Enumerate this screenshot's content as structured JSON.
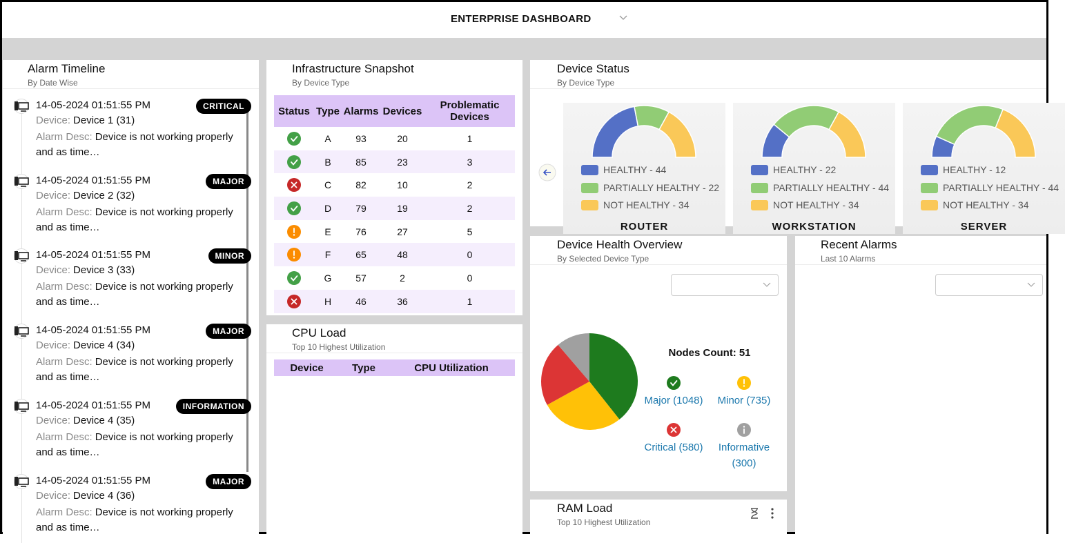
{
  "header": {
    "title": "ENTERPRISE DASHBOARD"
  },
  "alarm_timeline": {
    "title": "Alarm Timeline",
    "subtitle": "By Date Wise",
    "device_label": "Device:",
    "desc_label": "Alarm Desc:",
    "items": [
      {
        "datetime": "14-05-2024 01:51:55 PM",
        "severity": "CRITICAL",
        "device": "Device 1 (31)",
        "desc": "Device is not working properly and as time…"
      },
      {
        "datetime": "14-05-2024 01:51:55 PM",
        "severity": "MAJOR",
        "device": "Device 2 (32)",
        "desc": "Device is not working properly and as time…"
      },
      {
        "datetime": "14-05-2024 01:51:55 PM",
        "severity": "MINOR",
        "device": "Device 3 (33)",
        "desc": "Device is not working properly and as time…"
      },
      {
        "datetime": "14-05-2024 01:51:55 PM",
        "severity": "MAJOR",
        "device": "Device 4 (34)",
        "desc": "Device is not working properly and as time…"
      },
      {
        "datetime": "14-05-2024 01:51:55 PM",
        "severity": "INFORMATION",
        "device": "Device 4 (35)",
        "desc": "Device is not working properly and as time…"
      },
      {
        "datetime": "14-05-2024 01:51:55 PM",
        "severity": "MAJOR",
        "device": "Device 4 (36)",
        "desc": "Device is not working properly and as time…"
      }
    ]
  },
  "infrastructure_snapshot": {
    "title": "Infrastructure Snapshot",
    "subtitle": "By Device Type",
    "columns": [
      "Status",
      "Type",
      "Alarms",
      "Devices",
      "Problematic Devices"
    ],
    "status_colors": {
      "ok": "#43a047",
      "error": "#c62828",
      "warning": "#fb8c00"
    },
    "rows": [
      {
        "status": "ok",
        "type": "A",
        "alarms": 93,
        "devices": 20,
        "problematic_devices": 1
      },
      {
        "status": "ok",
        "type": "B",
        "alarms": 85,
        "devices": 23,
        "problematic_devices": 3
      },
      {
        "status": "error",
        "type": "C",
        "alarms": 82,
        "devices": 10,
        "problematic_devices": 2
      },
      {
        "status": "ok",
        "type": "D",
        "alarms": 79,
        "devices": 19,
        "problematic_devices": 2
      },
      {
        "status": "warning",
        "type": "E",
        "alarms": 76,
        "devices": 27,
        "problematic_devices": 5
      },
      {
        "status": "warning",
        "type": "F",
        "alarms": 65,
        "devices": 48,
        "problematic_devices": 0
      },
      {
        "status": "ok",
        "type": "G",
        "alarms": 57,
        "devices": 2,
        "problematic_devices": 0
      },
      {
        "status": "error",
        "type": "H",
        "alarms": 46,
        "devices": 36,
        "problematic_devices": 1
      }
    ]
  },
  "cpu_load": {
    "title": "CPU Load",
    "subtitle": "Top 10 Highest Utilization",
    "columns": [
      "Device",
      "Type",
      "CPU Utilization"
    ]
  },
  "device_status": {
    "title": "Device Status",
    "subtitle": "By Device Type",
    "cards": [
      {
        "name": "ROUTER",
        "segments": [
          {
            "label": "HEALTHY - 44",
            "value": 44,
            "color": "#5470c6"
          },
          {
            "label": "PARTIALLY HEALTHY - 22",
            "value": 22,
            "color": "#91cc75"
          },
          {
            "label": "NOT HEALTHY - 34",
            "value": 34,
            "color": "#fac858"
          }
        ]
      },
      {
        "name": "WORKSTATION",
        "segments": [
          {
            "label": "HEALTHY - 22",
            "value": 22,
            "color": "#5470c6"
          },
          {
            "label": "PARTIALLY HEALTHY - 44",
            "value": 44,
            "color": "#91cc75"
          },
          {
            "label": "NOT HEALTHY - 34",
            "value": 34,
            "color": "#fac858"
          }
        ]
      },
      {
        "name": "SERVER",
        "segments": [
          {
            "label": "HEALTHY - 12",
            "value": 12,
            "color": "#5470c6"
          },
          {
            "label": "PARTIALLY HEALTHY - 44",
            "value": 44,
            "color": "#91cc75"
          },
          {
            "label": "NOT HEALTHY - 34",
            "value": 34,
            "color": "#fac858"
          }
        ]
      }
    ]
  },
  "device_health": {
    "title": "Device Health Overview",
    "subtitle": "By Selected Device Type",
    "nodes_count_label": "Nodes Count:",
    "nodes_count": 51,
    "slices": [
      {
        "label": "Major (1048)",
        "value": 1048,
        "color": "#1e7b1e",
        "icon": "check"
      },
      {
        "label": "Minor (735)",
        "value": 735,
        "color": "#ffc107",
        "icon": "warning"
      },
      {
        "label": "Critical (580)",
        "value": 580,
        "color": "#dc3535",
        "icon": "cross"
      },
      {
        "label": "Informative (300)",
        "value": 300,
        "color": "#a0a0a0",
        "icon": "info"
      }
    ]
  },
  "recent_alarms": {
    "title": "Recent Alarms",
    "subtitle": "Last 10 Alarms"
  },
  "ram_load": {
    "title": "RAM Load",
    "subtitle": "Top 10 Highest Utilization"
  }
}
